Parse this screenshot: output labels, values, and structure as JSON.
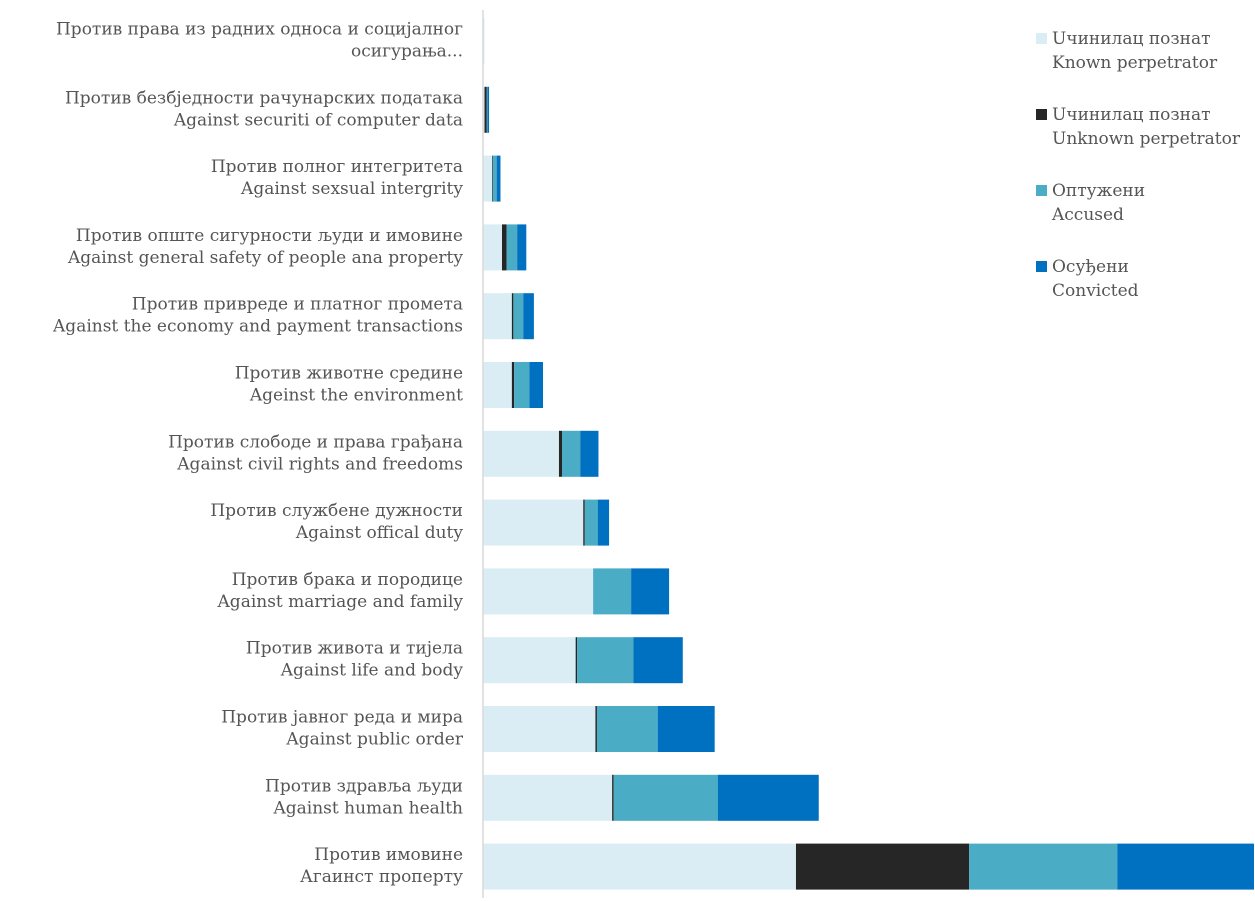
{
  "chart_data": {
    "type": "bar",
    "orientation": "horizontal",
    "stacked": true,
    "grid": false,
    "legend_position": "top-right",
    "categories": [
      [
        "Против права из радних односа и социјалног",
        "осигурања..."
      ],
      [
        "Против безбједности рачунарских података",
        "Against securiti of computer data"
      ],
      [
        "Против полног интегритета",
        "Against sexsual intergrity"
      ],
      [
        "Против опште сигурности људи и имовине",
        "Against general safety of people ana property"
      ],
      [
        "Против привреде и платног промета",
        "Against the economy and payment transactions"
      ],
      [
        "Против животне средине",
        "Ageinst the environment"
      ],
      [
        "Против слободе и права грађана",
        "Against civil rights and freedoms"
      ],
      [
        "Против службене дужности",
        "Against offical duty"
      ],
      [
        "Против брака и породице",
        "Against marriage and family"
      ],
      [
        "Против живота и тијела",
        "Against life and body"
      ],
      [
        "Против јавног реда и мира",
        "Against public order"
      ],
      [
        "Против здравља људи",
        "Against human health"
      ],
      [
        "Против имовине",
        "Агаинст проперту"
      ]
    ],
    "series": [
      {
        "name": "Uчинилац познат\nKnown perpetrator",
        "color": "#daedf4",
        "values": [
          2,
          2,
          12,
          25,
          38,
          38,
          100,
          132,
          145,
          122,
          148,
          170,
          412
        ]
      },
      {
        "name": "Uчинилац познат\nUnknown perpetrator",
        "color": "#262626",
        "values": [
          0,
          3,
          1,
          6,
          2,
          3,
          4,
          2,
          0,
          2,
          2,
          2,
          228
        ]
      },
      {
        "name": "Оптужени\nAccused",
        "color": "#4bacc6",
        "values": [
          0,
          1,
          5,
          14,
          13,
          20,
          24,
          17,
          50,
          74,
          80,
          137,
          195
        ]
      },
      {
        "name": "Осуђени\nConvicted",
        "color": "#0070c0",
        "values": [
          0,
          2,
          5,
          12,
          14,
          18,
          24,
          15,
          50,
          65,
          75,
          133,
          180
        ]
      }
    ]
  }
}
